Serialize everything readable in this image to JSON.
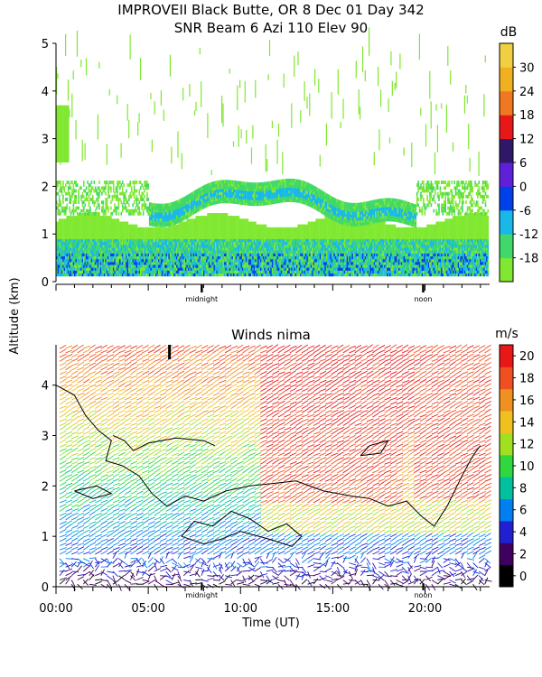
{
  "header": {
    "line1": "IMPROVEII  Black Butte, OR   8 Dec 01 Day 342",
    "line2": "SNR Beam 6 Azi 110 Elev 90"
  },
  "shared": {
    "ylabel": "Altitude (km)",
    "xlabel": "Time (UT)",
    "marker_midnight": "midnight",
    "marker_noon": "noon"
  },
  "chart_data": [
    {
      "type": "heatmap",
      "title": "SNR Beam 6 Azi 110 Elev 90",
      "ylabel": "Altitude (km)",
      "ylim": [
        0,
        5
      ],
      "yticks": [
        "0",
        "1",
        "2",
        "3",
        "4",
        "5"
      ],
      "xlim": [
        0,
        23.5
      ],
      "time_markers": [
        {
          "label": "midnight",
          "x": 7.9
        },
        {
          "label": "noon",
          "x": 19.9
        }
      ],
      "colorbar": {
        "unit": "dB",
        "ticks": [
          "-18",
          "-12",
          "-6",
          "0",
          "6",
          "12",
          "18",
          "24",
          "30"
        ],
        "colors": [
          "#80e830",
          "#40d868",
          "#18b8e8",
          "#0040e8",
          "#6020d8",
          "#301868",
          "#e81818",
          "#f07820",
          "#f0b020",
          "#f0d040"
        ]
      },
      "layers": [
        {
          "from": 0.1,
          "to": 1.4,
          "dominant": "-12 to -6 dB",
          "band": "surface layer"
        },
        {
          "elevated_layer_km_start": 1.3,
          "elevated_layer_km_mid": 1.9,
          "elevated_layer_km_end": 1.4
        },
        {
          "upper_sparse_km": [
            2.5,
            4.8
          ]
        }
      ]
    },
    {
      "type": "scatter",
      "title": "Winds nima",
      "xlabel": "Time (UT)",
      "ylabel": "Altitude (km)",
      "xlim": [
        0,
        23.5
      ],
      "ylim": [
        0,
        4.8
      ],
      "xticks": [
        "00:00",
        "05:00",
        "10:00",
        "15:00",
        "20:00"
      ],
      "xtick_values": [
        0,
        5,
        10,
        15,
        20
      ],
      "yticks": [
        "0",
        "1",
        "2",
        "3",
        "4"
      ],
      "colorbar": {
        "unit": "m/s",
        "ticks": [
          "0",
          "2",
          "4",
          "6",
          "8",
          "10",
          "12",
          "14",
          "16",
          "18",
          "20"
        ],
        "colors": [
          "#000000",
          "#400060",
          "#2020d0",
          "#0080f0",
          "#00c0a0",
          "#30d840",
          "#a0e020",
          "#f0c020",
          "#f09020",
          "#f05020",
          "#e81818"
        ]
      },
      "wind_speed_regimes": [
        {
          "time": [
            0,
            11
          ],
          "alt_km": [
            0,
            1
          ],
          "speed_ms": "2-8"
        },
        {
          "time": [
            0,
            11
          ],
          "alt_km": [
            1,
            3
          ],
          "speed_ms": "8-14"
        },
        {
          "time": [
            11,
            18
          ],
          "alt_km": [
            2,
            4.8
          ],
          "speed_ms": "18-20"
        },
        {
          "time": [
            19.5,
            23.5
          ],
          "alt_km": [
            2,
            4.8
          ],
          "speed_ms": "18-20"
        }
      ]
    }
  ]
}
